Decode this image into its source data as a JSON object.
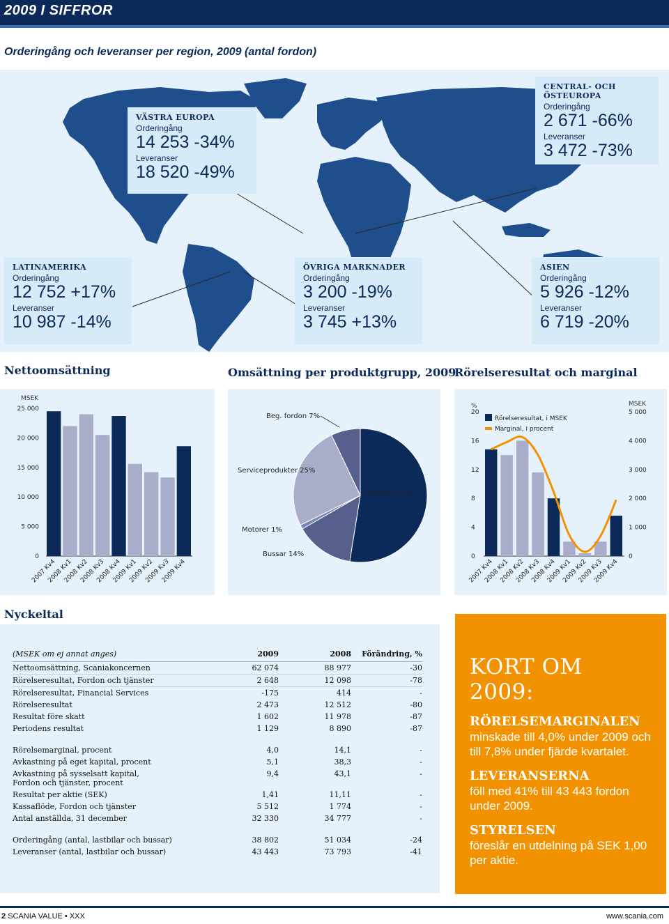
{
  "header": {
    "title": "2009 I SIFFROR"
  },
  "map": {
    "title": "Orderingång och leveranser per region, 2009 (antal fordon)",
    "regions": [
      {
        "name": "VÄSTRA EUROPA",
        "order_label": "Orderingång",
        "order_value": "14 253 -34%",
        "delivery_label": "Leveranser",
        "delivery_value": "18 520 -49%"
      },
      {
        "name": "CENTRAL- OCH ÖSTEUROPA",
        "order_label": "Orderingång",
        "order_value": "2 671 -66%",
        "delivery_label": "Leveranser",
        "delivery_value": "3 472 -73%"
      },
      {
        "name": "LATINAMERIKA",
        "order_label": "Orderingång",
        "order_value": "12 752 +17%",
        "delivery_label": "Leveranser",
        "delivery_value": "10 987 -14%"
      },
      {
        "name": "ÖVRIGA MARKNADER",
        "order_label": "Orderingång",
        "order_value": "3 200 -19%",
        "delivery_label": "Leveranser",
        "delivery_value": "3 745 +13%"
      },
      {
        "name": "ASIEN",
        "order_label": "Orderingång",
        "order_value": "5 926 -12%",
        "delivery_label": "Leveranser",
        "delivery_value": "6 719 -20%"
      }
    ]
  },
  "sections": {
    "netsales_title": "Nettoomsättning",
    "product_title": "Omsättning per produktgrupp, 2009",
    "operating_title": "Rörelseresultat och marginal"
  },
  "chart_data": [
    {
      "type": "bar",
      "title": "Nettoomsättning",
      "ylabel": "MSEK",
      "ylim": [
        0,
        25000
      ],
      "yticks": [
        "25 000",
        "20 000",
        "15 000",
        "10 000",
        "5 000",
        "0"
      ],
      "categories": [
        "2007 Kv4",
        "2008 Kv1",
        "2008 Kv2",
        "2008 Kv3",
        "2008 Kv4",
        "2009 Kv1",
        "2009 Kv2",
        "2009 Kv3",
        "2009 Kv4"
      ],
      "values": [
        24500,
        22000,
        24000,
        20500,
        23700,
        15600,
        14200,
        13300,
        18600
      ],
      "highlight": [
        0,
        4,
        8
      ],
      "colors": {
        "highlight": "#0b2a5a",
        "normal": "#a9adc9"
      }
    },
    {
      "type": "pie",
      "title": "Omsättning per produktgrupp, 2009",
      "slices": [
        {
          "label": "Lastbilar 52%",
          "value": 52,
          "color": "#0b2a5a"
        },
        {
          "label": "Bussar 14%",
          "value": 14,
          "color": "#575f8c"
        },
        {
          "label": "Motorer 1%",
          "value": 1,
          "color": "#7a86b2"
        },
        {
          "label": "Serviceprodukter 25%",
          "value": 25,
          "color": "#a9adc9"
        },
        {
          "label": "Beg. fordon 7%",
          "value": 7,
          "color": "#575f8c"
        }
      ]
    },
    {
      "type": "bar",
      "title": "Rörelseresultat och marginal",
      "ylabel": "MSEK",
      "y2label": "%",
      "ylim": [
        0,
        5000
      ],
      "y2lim": [
        0,
        20
      ],
      "yticks_right": [
        "5 000",
        "4 000",
        "3 000",
        "2 000",
        "1 000",
        "0"
      ],
      "yticks_left": [
        "20",
        "16",
        "12",
        "8",
        "4",
        "0"
      ],
      "categories": [
        "2007 Kv4",
        "2008 Kv1",
        "2008 Kv2",
        "2008 Kv3",
        "2008 Kv4",
        "2009 Kv1",
        "2009 Kv2",
        "2009 Kv3",
        "2009 Kv4"
      ],
      "series": [
        {
          "name": "Rörelseresultat, i MSEK",
          "values": [
            3700,
            3500,
            4000,
            2900,
            2000,
            500,
            100,
            500,
            1400
          ]
        },
        {
          "name": "Marginal, i procent",
          "values": [
            14.8,
            15.8,
            16.5,
            14.0,
            8.9,
            2.9,
            0.6,
            2.8,
            7.8
          ]
        }
      ],
      "highlight": [
        0,
        4,
        8
      ],
      "colors": {
        "highlight": "#0b2a5a",
        "normal": "#a9adc9",
        "line": "#f39200"
      }
    }
  ],
  "table": {
    "title": "Nyckeltal",
    "headers": [
      "(MSEK om ej annat anges)",
      "2009",
      "2008",
      "Förändring, %"
    ],
    "rows": [
      {
        "label": "Nettoomsättning, Scaniakoncernen",
        "v2009": "62 074",
        "v2008": "88 977",
        "chg": "-30",
        "line": true
      },
      {
        "label": "Rörelseresultat, Fordon och tjänster",
        "v2009": "2 648",
        "v2008": "12 098",
        "chg": "-78",
        "line": true
      },
      {
        "label": "Rörelseresultat, Financial Services",
        "v2009": "-175",
        "v2008": "414",
        "chg": "-",
        "line": false
      },
      {
        "label": "Rörelseresultat",
        "v2009": "2 473",
        "v2008": "12 512",
        "chg": "-80",
        "line": false
      },
      {
        "label": "Resultat före skatt",
        "v2009": "1 602",
        "v2008": "11 978",
        "chg": "-87",
        "line": false
      },
      {
        "label": "Periodens resultat",
        "v2009": "1 129",
        "v2008": "8 890",
        "chg": "-87",
        "line": false
      },
      {
        "gap": true
      },
      {
        "label": "Rörelsemarginal, procent",
        "v2009": "4,0",
        "v2008": "14,1",
        "chg": "-",
        "line": false
      },
      {
        "label": "Avkastning på eget kapital, procent",
        "v2009": "5,1",
        "v2008": "38,3",
        "chg": "-",
        "line": false
      },
      {
        "label": "Avkastning på sysselsatt kapital,",
        "label2": "Fordon och tjänster, procent",
        "v2009": "9,4",
        "v2008": "43,1",
        "chg": "-",
        "line": false
      },
      {
        "label": "Resultat per aktie (SEK)",
        "v2009": "1,41",
        "v2008": "11,11",
        "chg": "-",
        "line": false
      },
      {
        "label": "Kassaflöde, Fordon och tjänster",
        "v2009": "5 512",
        "v2008": "1 774",
        "chg": "-",
        "line": false
      },
      {
        "label": "Antal anställda, 31 december",
        "v2009": "32 330",
        "v2008": "34 777",
        "chg": "-",
        "line": false
      },
      {
        "gap": true
      },
      {
        "label": "Orderingång (antal, lastbilar och bussar)",
        "v2009": "38 802",
        "v2008": "51 034",
        "chg": "-24",
        "line": false
      },
      {
        "label": "Leveranser (antal, lastbilar och bussar)",
        "v2009": "43 443",
        "v2008": "73 793",
        "chg": "-41",
        "line": false
      }
    ]
  },
  "kort": {
    "title": "KORT OM 2009:",
    "items": [
      {
        "head": "RÖRELSEMARGINALEN",
        "body": "minskade till 4,0% under 2009 och till 7,8% under fjärde kvartalet."
      },
      {
        "head": "LEVERANSERNA",
        "body": "föll med 41% till 43 443 fordon under 2009."
      },
      {
        "head": "STYRELSEN",
        "body": "föreslår en utdelning på SEK 1,00 per aktie."
      }
    ]
  },
  "footer": {
    "page": "2",
    "brand": "SCANIA VALUE",
    "separator": "•",
    "code": "XXX",
    "url": "www.scania.com"
  }
}
